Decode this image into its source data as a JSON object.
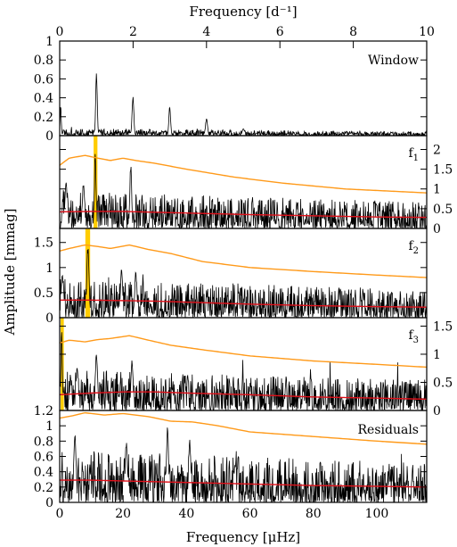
{
  "chart_data": {
    "type": "line",
    "top_axis": {
      "label": "Frequency [d⁻¹]",
      "range": [
        0,
        10
      ],
      "ticks": [
        "0",
        "2",
        "4",
        "6",
        "8",
        "10"
      ]
    },
    "bottom_axis": {
      "label": "Frequency [μHz]",
      "range": [
        0,
        115.74
      ],
      "ticks": [
        "0",
        "20",
        "40",
        "60",
        "80",
        "100"
      ]
    },
    "ylabel": "Amplitude [mmag]",
    "colors": {
      "spectrum": "#000000",
      "threshold_upper": "#ff9a1a",
      "threshold_lower": "#e0101a",
      "highlight": "#ffcc00"
    },
    "panels": [
      {
        "name": "Window",
        "label": "Window",
        "label_sub": "",
        "axis_side": "left",
        "ylim": [
          0,
          1
        ],
        "ticks": [
          {
            "value": 0,
            "label": "0"
          },
          {
            "value": 0.2,
            "label": "0.2"
          },
          {
            "value": 0.4,
            "label": "0.4"
          },
          {
            "value": 0.6,
            "label": "0.6"
          },
          {
            "value": 0.8,
            "label": "0.8"
          },
          {
            "value": 1,
            "label": "1"
          }
        ],
        "noise_base": 0.04,
        "noise_decay": 0.45,
        "peaks": [
          {
            "f": 0.3,
            "a": 0.34,
            "w": 0.25
          },
          {
            "f": 11.6,
            "a": 0.7,
            "w": 0.35
          },
          {
            "f": 23.1,
            "a": 0.42,
            "w": 0.4
          },
          {
            "f": 34.7,
            "a": 0.31,
            "w": 0.4
          },
          {
            "f": 46.3,
            "a": 0.19,
            "w": 0.45
          },
          {
            "f": 57.9,
            "a": 0.08,
            "w": 0.5
          }
        ],
        "highlight": null,
        "upper_curve": null,
        "lower_curve": null
      },
      {
        "name": "f1",
        "label": "f",
        "label_sub": "1",
        "axis_side": "right",
        "ylim": [
          0,
          2.35
        ],
        "ticks": [
          {
            "value": 0,
            "label": "0"
          },
          {
            "value": 0.5,
            "label": "0.5"
          },
          {
            "value": 1,
            "label": "1"
          },
          {
            "value": 1.5,
            "label": "1.5"
          },
          {
            "value": 2,
            "label": "2"
          }
        ],
        "noise_base": 0.5,
        "noise_decay": 0.3,
        "peaks": [
          {
            "f": 11.2,
            "a": 1.9,
            "w": 0.4
          },
          {
            "f": 22.4,
            "a": 1.7,
            "w": 0.4
          },
          {
            "f": 7.5,
            "a": 1.25,
            "w": 0.5
          },
          {
            "f": 2.0,
            "a": 1.2,
            "w": 0.5
          }
        ],
        "highlight": [
          10.7,
          11.9
        ],
        "upper_curve": {
          "x": [
            0,
            3,
            8,
            12,
            16,
            20,
            24,
            30,
            40,
            55,
            70,
            90,
            115.74
          ],
          "y": [
            1.6,
            1.78,
            1.85,
            1.78,
            1.72,
            1.78,
            1.72,
            1.65,
            1.5,
            1.3,
            1.15,
            1.0,
            0.9
          ]
        },
        "lower_curve": {
          "x": [
            0,
            10,
            20,
            30,
            40,
            60,
            80,
            100,
            115.74
          ],
          "y": [
            0.42,
            0.43,
            0.43,
            0.41,
            0.39,
            0.35,
            0.32,
            0.29,
            0.28
          ]
        }
      },
      {
        "name": "f2",
        "label": "f",
        "label_sub": "2",
        "axis_side": "left",
        "ylim": [
          0,
          1.78
        ],
        "ticks": [
          {
            "value": 0,
            "label": "0"
          },
          {
            "value": 0.5,
            "label": "0.5"
          },
          {
            "value": 1,
            "label": "1"
          },
          {
            "value": 1.5,
            "label": "1.5"
          }
        ],
        "noise_base": 0.42,
        "noise_decay": 0.3,
        "peaks": [
          {
            "f": 8.9,
            "a": 1.5,
            "w": 0.5
          },
          {
            "f": 0.8,
            "a": 0.95,
            "w": 0.5
          },
          {
            "f": 19.5,
            "a": 1.0,
            "w": 0.5
          },
          {
            "f": 24.0,
            "a": 0.95,
            "w": 0.5
          }
        ],
        "highlight": [
          8.1,
          9.6
        ],
        "upper_curve": {
          "x": [
            0,
            3,
            8,
            12,
            16,
            22,
            28,
            35,
            45,
            60,
            80,
            100,
            115.74
          ],
          "y": [
            1.33,
            1.38,
            1.45,
            1.42,
            1.38,
            1.45,
            1.36,
            1.28,
            1.12,
            1.0,
            0.92,
            0.85,
            0.8
          ]
        },
        "lower_curve": {
          "x": [
            0,
            10,
            20,
            30,
            40,
            60,
            80,
            100,
            115.74
          ],
          "y": [
            0.35,
            0.35,
            0.34,
            0.33,
            0.31,
            0.27,
            0.24,
            0.22,
            0.21
          ]
        }
      },
      {
        "name": "f3",
        "label": "f",
        "label_sub": "3",
        "axis_side": "right",
        "ylim": [
          0,
          1.65
        ],
        "ticks": [
          {
            "value": 0,
            "label": "0"
          },
          {
            "value": 0.5,
            "label": "0.5"
          },
          {
            "value": 1,
            "label": "1"
          },
          {
            "value": 1.5,
            "label": "1.5"
          }
        ],
        "noise_base": 0.38,
        "noise_decay": 0.25,
        "peaks": [
          {
            "f": 0.6,
            "a": 1.55,
            "w": 0.3
          },
          {
            "f": 11.6,
            "a": 1.1,
            "w": 0.5
          },
          {
            "f": 5.5,
            "a": 0.85,
            "w": 0.5
          },
          {
            "f": 22.8,
            "a": 0.9,
            "w": 0.5
          }
        ],
        "highlight": [
          0.3,
          1.3
        ],
        "upper_curve": {
          "x": [
            0,
            3,
            8,
            12,
            16,
            22,
            28,
            35,
            45,
            60,
            80,
            100,
            115.74
          ],
          "y": [
            1.2,
            1.25,
            1.22,
            1.26,
            1.28,
            1.33,
            1.25,
            1.16,
            1.08,
            0.97,
            0.88,
            0.82,
            0.77
          ]
        },
        "lower_curve": {
          "x": [
            0,
            10,
            20,
            30,
            40,
            60,
            80,
            100,
            115.74
          ],
          "y": [
            0.28,
            0.31,
            0.33,
            0.33,
            0.31,
            0.28,
            0.24,
            0.22,
            0.2
          ]
        }
      },
      {
        "name": "Residuals",
        "label": "Residuals",
        "label_sub": "",
        "axis_side": "left",
        "ylim": [
          0,
          1.2
        ],
        "ticks": [
          {
            "value": 0,
            "label": "0"
          },
          {
            "value": 0.2,
            "label": "0.2"
          },
          {
            "value": 0.4,
            "label": "0.4"
          },
          {
            "value": 0.6,
            "label": "0.6"
          },
          {
            "value": 0.8,
            "label": "0.8"
          },
          {
            "value": 1,
            "label": "1"
          },
          {
            "value": 1.2,
            "label": "1.2"
          }
        ],
        "noise_base": 0.36,
        "noise_decay": 0.25,
        "peaks": [
          {
            "f": 34.0,
            "a": 1.02,
            "w": 0.5
          },
          {
            "f": 41.0,
            "a": 0.85,
            "w": 0.5
          },
          {
            "f": 4.8,
            "a": 0.95,
            "w": 0.5
          },
          {
            "f": 21.0,
            "a": 0.82,
            "w": 0.5
          }
        ],
        "highlight": null,
        "upper_curve": {
          "x": [
            0,
            4,
            8,
            14,
            20,
            28,
            35,
            42,
            50,
            60,
            80,
            100,
            115.74
          ],
          "y": [
            1.1,
            1.13,
            1.17,
            1.14,
            1.16,
            1.12,
            1.06,
            1.05,
            1.0,
            0.92,
            0.86,
            0.8,
            0.76
          ]
        },
        "lower_curve": {
          "x": [
            0,
            10,
            20,
            30,
            40,
            60,
            80,
            100,
            115.74
          ],
          "y": [
            0.29,
            0.29,
            0.28,
            0.27,
            0.26,
            0.24,
            0.22,
            0.21,
            0.2
          ]
        }
      }
    ]
  }
}
